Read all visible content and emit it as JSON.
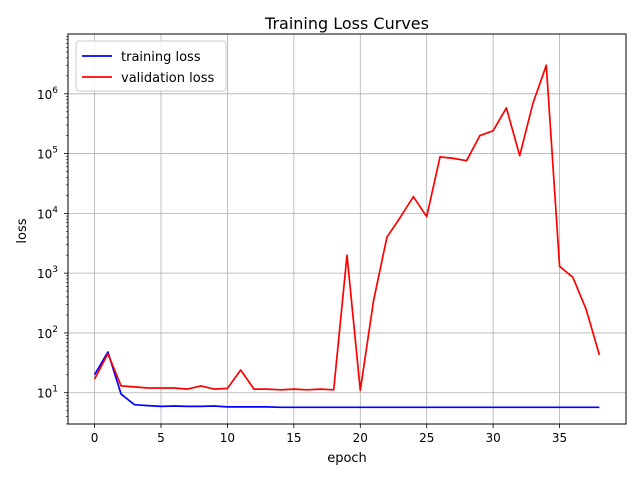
{
  "chart_data": {
    "type": "line",
    "title": "Training Loss Curves",
    "xlabel": "epoch",
    "ylabel": "loss",
    "yscale": "log",
    "xlim": [
      -2,
      40
    ],
    "ylim": [
      3,
      10000000
    ],
    "xticks": [
      0,
      5,
      10,
      15,
      20,
      25,
      30,
      35
    ],
    "xtick_labels": [
      "0",
      "5",
      "10",
      "15",
      "20",
      "25",
      "30",
      "35"
    ],
    "yticks": [
      10,
      100,
      1000,
      10000,
      100000,
      1000000
    ],
    "ytick_base": "10",
    "ytick_exponents": [
      "1",
      "2",
      "3",
      "4",
      "5",
      "6"
    ],
    "grid": true,
    "legend_position": "top-left",
    "x": [
      0,
      1,
      2,
      3,
      4,
      5,
      6,
      7,
      8,
      9,
      10,
      11,
      12,
      13,
      14,
      15,
      16,
      17,
      18,
      19,
      20,
      21,
      22,
      23,
      24,
      25,
      26,
      27,
      28,
      29,
      30,
      31,
      32,
      33,
      34,
      35,
      36,
      37,
      38
    ],
    "series": [
      {
        "name": "training loss",
        "color": "#0000ff",
        "values": [
          20,
          48,
          9.5,
          6.3,
          6.1,
          5.9,
          6.0,
          5.9,
          5.9,
          6.0,
          5.8,
          5.8,
          5.8,
          5.8,
          5.7,
          5.7,
          5.7,
          5.7,
          5.7,
          5.7,
          5.7,
          5.7,
          5.7,
          5.7,
          5.7,
          5.7,
          5.7,
          5.7,
          5.7,
          5.7,
          5.7,
          5.7,
          5.7,
          5.7,
          5.7,
          5.7,
          5.7,
          5.7,
          5.7
        ]
      },
      {
        "name": "validation loss",
        "color": "#ff0000",
        "values": [
          17,
          45,
          13,
          12.5,
          12,
          12,
          12,
          11.5,
          13,
          11.5,
          11.8,
          24,
          11.5,
          11.5,
          11.2,
          11.5,
          11.2,
          11.5,
          11.2,
          2000,
          11,
          350,
          4000,
          8500,
          19000,
          8800,
          88000,
          83000,
          76000,
          200000,
          240000,
          580000,
          92000,
          700000,
          3000000,
          1300,
          850,
          250,
          43
        ]
      }
    ]
  }
}
